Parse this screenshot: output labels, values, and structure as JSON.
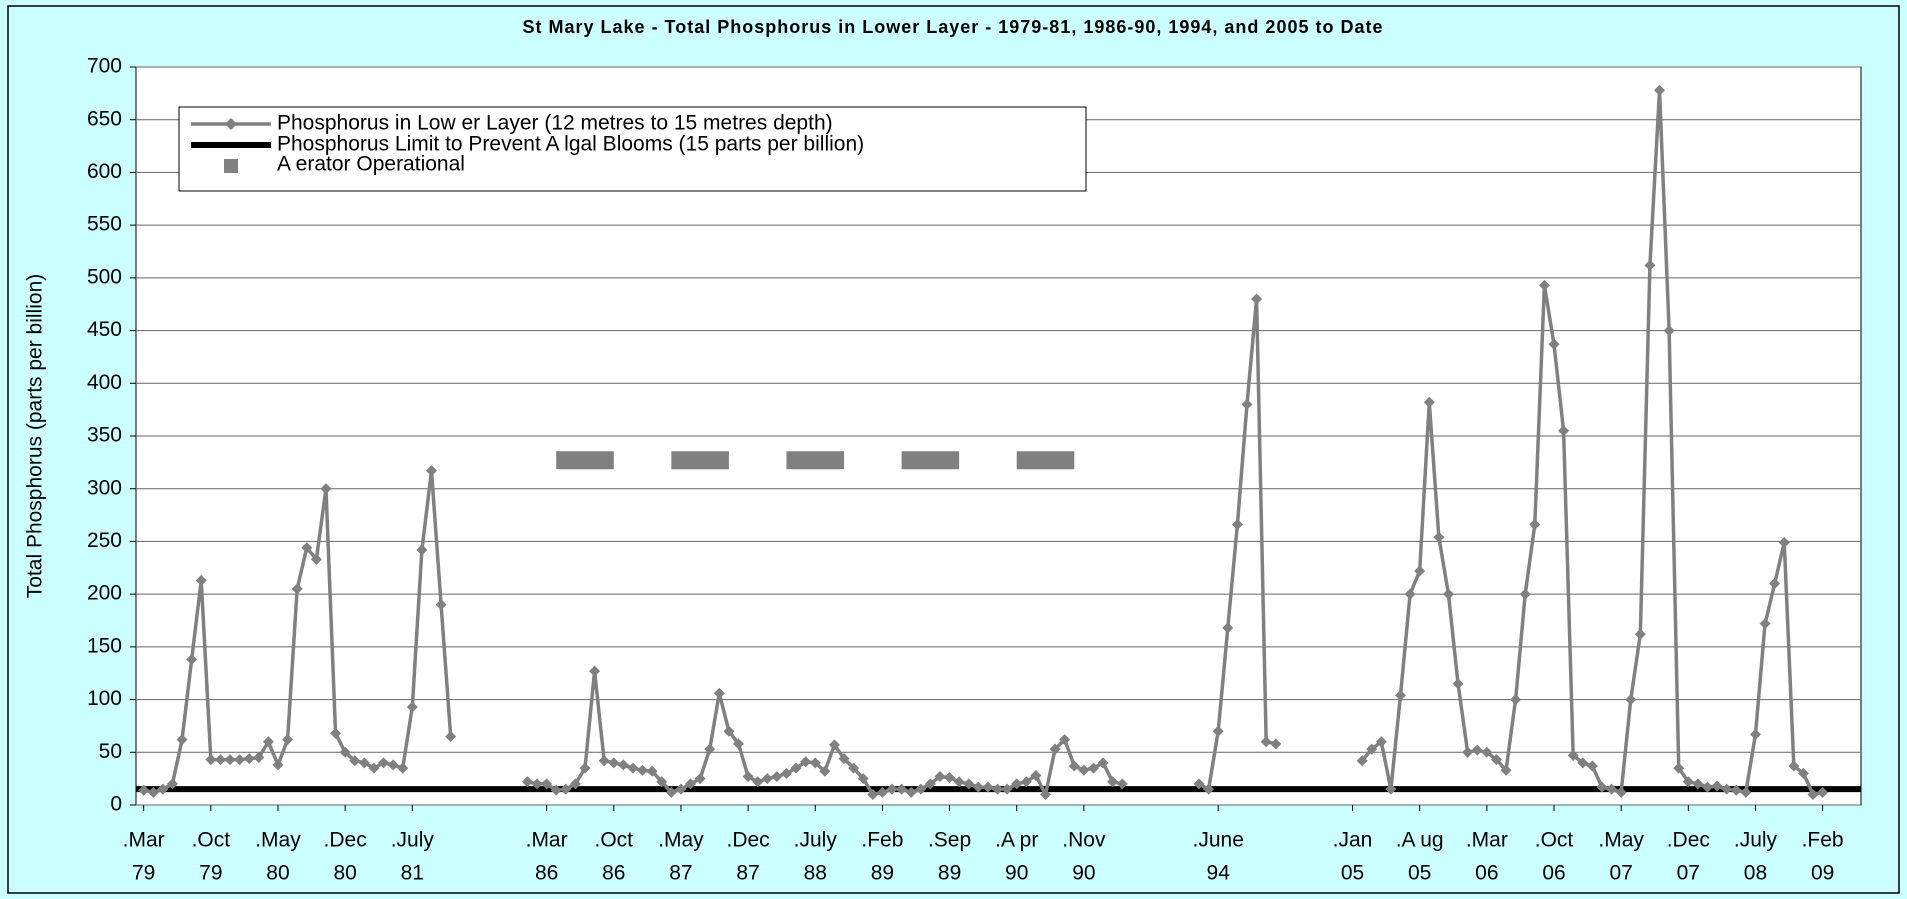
{
  "chart_data": {
    "type": "line",
    "title": "St Mary Lake - Total Phosphorus in Lower Layer - 1979-81, 1986-90, 1994, and 2005 to Date",
    "y_label": "Total Phosphorus (parts per billion)",
    "ylim": [
      0,
      700
    ],
    "yticks": [
      0,
      50,
      100,
      150,
      200,
      250,
      300,
      350,
      400,
      450,
      500,
      550,
      600,
      650,
      700
    ],
    "xlim": [
      -0.8,
      179
    ],
    "grid": true,
    "xticks": [
      {
        "value": 0,
        "label": [
          ".Mar",
          "79"
        ]
      },
      {
        "value": 7,
        "label": [
          ".Oct",
          "79"
        ]
      },
      {
        "value": 14,
        "label": [
          ".May",
          "80"
        ]
      },
      {
        "value": 21,
        "label": [
          ".Dec",
          "80"
        ]
      },
      {
        "value": 28,
        "label": [
          ".July",
          "81"
        ]
      },
      {
        "value": 42,
        "label": [
          ".Mar",
          "86"
        ]
      },
      {
        "value": 49,
        "label": [
          ".Oct",
          "86"
        ]
      },
      {
        "value": 56,
        "label": [
          ".May",
          "87"
        ]
      },
      {
        "value": 63,
        "label": [
          ".Dec",
          "87"
        ]
      },
      {
        "value": 70,
        "label": [
          ".July",
          "88"
        ]
      },
      {
        "value": 77,
        "label": [
          ".Feb",
          "89"
        ]
      },
      {
        "value": 84,
        "label": [
          ".Sep",
          "89"
        ]
      },
      {
        "value": 91,
        "label": [
          ".A pr",
          "90"
        ]
      },
      {
        "value": 98,
        "label": [
          ".Nov",
          "90"
        ]
      },
      {
        "value": 112,
        "label": [
          ".June",
          "94"
        ]
      },
      {
        "value": 126,
        "label": [
          ".Jan",
          "05"
        ]
      },
      {
        "value": 133,
        "label": [
          ".A ug",
          "05"
        ]
      },
      {
        "value": 140,
        "label": [
          ".Mar",
          "06"
        ]
      },
      {
        "value": 147,
        "label": [
          ".Oct",
          "06"
        ]
      },
      {
        "value": 154,
        "label": [
          ".May",
          "07"
        ]
      },
      {
        "value": 161,
        "label": [
          ".Dec",
          "07"
        ]
      },
      {
        "value": 168,
        "label": [
          ".July",
          "08"
        ]
      },
      {
        "value": 175,
        "label": [
          ".Feb",
          "09"
        ]
      }
    ],
    "legend": "upper left",
    "series": [
      {
        "name": "Phosphorus in Low er Layer (12 metres to 15 metres depth)",
        "color": "#808080",
        "x": [
          0,
          1,
          2,
          3,
          4,
          5,
          6,
          7,
          8,
          9,
          10,
          11,
          12,
          13,
          14,
          15,
          16,
          17,
          18,
          19,
          20,
          21,
          22,
          23,
          24,
          25,
          26,
          27,
          28,
          29,
          30,
          31,
          32,
          36,
          40,
          41,
          42,
          43,
          44,
          45,
          46,
          47,
          48,
          49,
          50,
          51,
          52,
          53,
          54,
          55,
          56,
          57,
          58,
          59,
          60,
          61,
          62,
          63,
          64,
          65,
          66,
          67,
          68,
          69,
          70,
          71,
          72,
          73,
          74,
          75,
          76,
          77,
          78,
          79,
          80,
          81,
          82,
          83,
          84,
          85,
          86,
          87,
          88,
          89,
          90,
          91,
          92,
          93,
          94,
          95,
          96,
          97,
          98,
          99,
          100,
          101,
          102,
          106,
          110,
          111,
          112,
          113,
          114,
          115,
          116,
          117,
          118,
          122,
          127,
          128,
          129,
          130,
          131,
          132,
          133,
          134,
          135,
          136,
          137,
          138,
          139,
          140,
          141,
          142,
          143,
          144,
          145,
          146,
          147,
          148,
          149,
          150,
          151,
          152,
          153,
          154,
          155,
          156,
          157,
          158,
          159,
          160,
          161,
          162,
          163,
          164,
          165,
          166,
          167,
          168,
          169,
          170,
          171,
          172,
          173,
          174,
          175
        ],
        "values": [
          14,
          12,
          15,
          20,
          62,
          138,
          213,
          43,
          43,
          43,
          43,
          44,
          45,
          60,
          38,
          62,
          205,
          244,
          233,
          300,
          68,
          50,
          42,
          40,
          35,
          40,
          38,
          35,
          93,
          242,
          317,
          190,
          65,
          null,
          22,
          20,
          20,
          14,
          15,
          20,
          35,
          127,
          42,
          40,
          38,
          35,
          33,
          32,
          22,
          12,
          15,
          20,
          25,
          53,
          106,
          70,
          58,
          27,
          22,
          25,
          27,
          30,
          35,
          41,
          40,
          32,
          57,
          44,
          35,
          25,
          10,
          12,
          15,
          15,
          12,
          15,
          20,
          27,
          26,
          22,
          20,
          17,
          17,
          15,
          15,
          20,
          22,
          28,
          10,
          53,
          62,
          37,
          33,
          35,
          40,
          22,
          20,
          null,
          20,
          15,
          70,
          168,
          266,
          380,
          480,
          60,
          58,
          null,
          42,
          53,
          60,
          15,
          104,
          200,
          222,
          382,
          254,
          200,
          115,
          50,
          52,
          50,
          43,
          33,
          100,
          200,
          266,
          493,
          437,
          355,
          47,
          40,
          37,
          17,
          15,
          12,
          100,
          162,
          512,
          678,
          450,
          35,
          22,
          20,
          17,
          18,
          15,
          14,
          12,
          67,
          172,
          210,
          249,
          37,
          30,
          10,
          12
        ]
      }
    ],
    "limit_line": {
      "name": "Phosphorus Limit to Prevent A lgal Blooms (15 parts per billion)",
      "value": 15,
      "color": "#000000"
    },
    "aerator": {
      "name": "A erator Operational",
      "value": 327,
      "color": "#808080",
      "periods": [
        [
          43,
          49
        ],
        [
          55,
          61
        ],
        [
          67,
          73
        ],
        [
          79,
          85
        ],
        [
          91,
          97
        ]
      ]
    }
  }
}
